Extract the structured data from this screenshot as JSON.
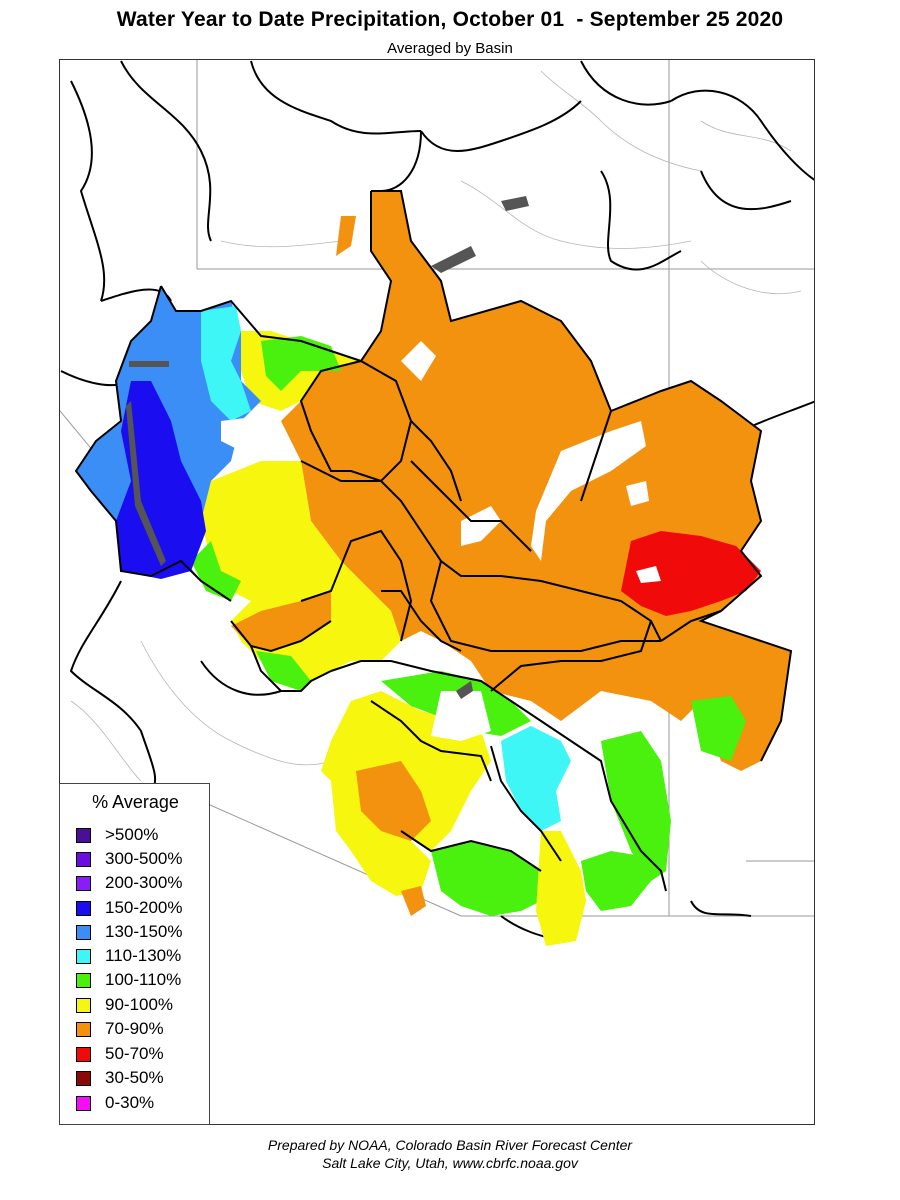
{
  "header": {
    "title": "Water Year to Date Precipitation, October 01  - September 25 2020",
    "subtitle": "Averaged by Basin"
  },
  "legend": {
    "title": "% Average",
    "items": [
      {
        "label": ">500%",
        "color": "#4b0e97"
      },
      {
        "label": "300-500%",
        "color": "#6a0de0"
      },
      {
        "label": "200-300%",
        "color": "#8a1cf7"
      },
      {
        "label": "150-200%",
        "color": "#1a0ef0"
      },
      {
        "label": "130-150%",
        "color": "#3a8ef6"
      },
      {
        "label": "110-130%",
        "color": "#3ff6f6"
      },
      {
        "label": "100-110%",
        "color": "#4af00e"
      },
      {
        "label": "90-100%",
        "color": "#f6f60e"
      },
      {
        "label": "70-90%",
        "color": "#f2920f"
      },
      {
        "label": "50-70%",
        "color": "#f00a0a"
      },
      {
        "label": "30-50%",
        "color": "#8a0808"
      },
      {
        "label": "0-30%",
        "color": "#f20ef6"
      }
    ]
  },
  "credits": {
    "line1": "Prepared by NOAA, Colorado Basin River Forecast Center",
    "line2": "Salt Lake City, Utah, www.cbrfc.noaa.gov"
  }
}
